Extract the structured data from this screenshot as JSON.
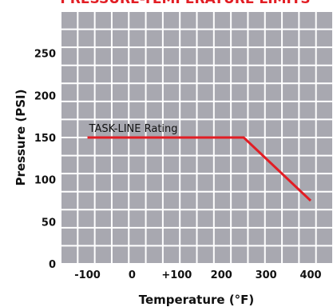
{
  "chart_data": {
    "type": "line",
    "title": "PRESSURE-TEMPERATURE LIMITS",
    "xlabel": "Temperature (°F)",
    "ylabel": "Pressure (PSI)",
    "x_tick_labels": [
      "-100",
      "0",
      "+100",
      "200",
      "300",
      "400"
    ],
    "x_ticks": [
      -100,
      0,
      100,
      200,
      300,
      400
    ],
    "y_tick_labels": [
      "0",
      "50",
      "100",
      "150",
      "200",
      "250"
    ],
    "y_ticks": [
      0,
      50,
      100,
      150,
      200,
      250
    ],
    "xlim": [
      -160,
      450
    ],
    "ylim": [
      0,
      300
    ],
    "grid": true,
    "series": [
      {
        "name": "TASK-LINE Rating",
        "x": [
          -100,
          250,
          400
        ],
        "y": [
          150,
          150,
          75
        ]
      }
    ],
    "annotations": [
      {
        "text": "TASK-LINE Rating",
        "x": -100,
        "y": 150
      }
    ],
    "colors": {
      "plot_bg": "#a8a8b0",
      "grid": "#ffffff",
      "line": "#e21d24",
      "title": "#e21d24"
    }
  }
}
